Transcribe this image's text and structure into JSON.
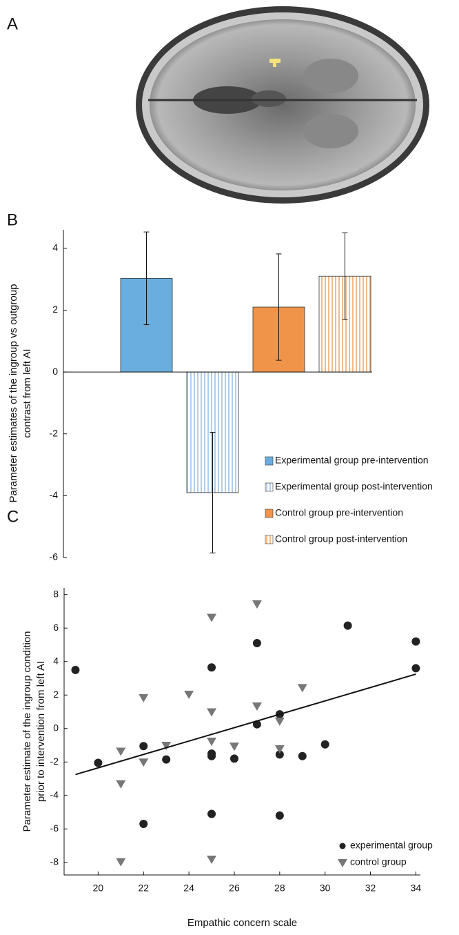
{
  "panel_a": {
    "label": "A"
  },
  "chart_data": [
    {
      "type": "bar",
      "panel": "B",
      "ylabel": [
        "Parameter estimates of the ingroup vs outgroup",
        "contrast from left AI"
      ],
      "ylim": [
        -6,
        4.6
      ],
      "yticks": [
        -6,
        -4,
        -2,
        0,
        2,
        4
      ],
      "series": [
        {
          "name": "Experimental group pre-intervention",
          "color": "#6aaedf",
          "striped": false,
          "values": [
            3.03
          ],
          "errors": [
            1.5
          ]
        },
        {
          "name": "Experimental group post-intervention",
          "color": "#9cc3e6",
          "striped": true,
          "values": [
            -3.9
          ],
          "errors": [
            1.95
          ]
        },
        {
          "name": "Control group pre-intervention",
          "color": "#f0944a",
          "striped": false,
          "values": [
            2.1
          ],
          "errors": [
            1.72
          ]
        },
        {
          "name": "Control group post-intervention",
          "color": "#f4a866",
          "striped": true,
          "values": [
            3.1
          ],
          "errors": [
            1.4
          ]
        }
      ]
    },
    {
      "type": "scatter",
      "panel": "C",
      "xlabel": "Empathic concern scale",
      "ylabel": [
        "Parameter estimate of the ingroup condition",
        "prior to intervention from left AI"
      ],
      "xlim": [
        18.5,
        34.2
      ],
      "xticks": [
        20,
        22,
        24,
        26,
        28,
        30,
        32,
        34
      ],
      "ylim": [
        -8.75,
        8.4
      ],
      "yticks": [
        -8,
        -6,
        -4,
        -2,
        0,
        2,
        4,
        6,
        8
      ],
      "series": [
        {
          "name": "experimental group",
          "color": "#222222",
          "marker": "circle",
          "x": [
            19,
            20,
            22,
            22,
            23,
            25,
            25,
            25,
            25,
            26,
            27,
            27,
            28,
            28,
            28,
            29,
            30,
            31,
            34,
            34
          ],
          "values": [
            3.5,
            -2.05,
            -1.05,
            -5.7,
            -1.85,
            3.65,
            -1.5,
            -1.65,
            -5.1,
            -1.8,
            5.1,
            0.25,
            0.85,
            -1.55,
            -5.2,
            -1.65,
            -0.95,
            6.15,
            5.2,
            3.6
          ]
        },
        {
          "name": "control group",
          "color": "#777777",
          "marker": "triangle",
          "x": [
            21,
            21,
            21,
            22,
            22,
            23,
            24,
            25,
            25,
            25,
            25,
            26,
            27,
            27,
            28,
            28,
            29
          ],
          "values": [
            -1.35,
            -3.3,
            -7.95,
            1.85,
            -2,
            -1,
            2.05,
            6.65,
            1,
            -0.75,
            -7.8,
            -1.05,
            7.45,
            1.35,
            0.45,
            -1.2,
            2.45
          ]
        }
      ],
      "trend_line": {
        "color": "#111111",
        "x": [
          19,
          34
        ],
        "values": [
          -2.75,
          3.25
        ]
      }
    }
  ]
}
